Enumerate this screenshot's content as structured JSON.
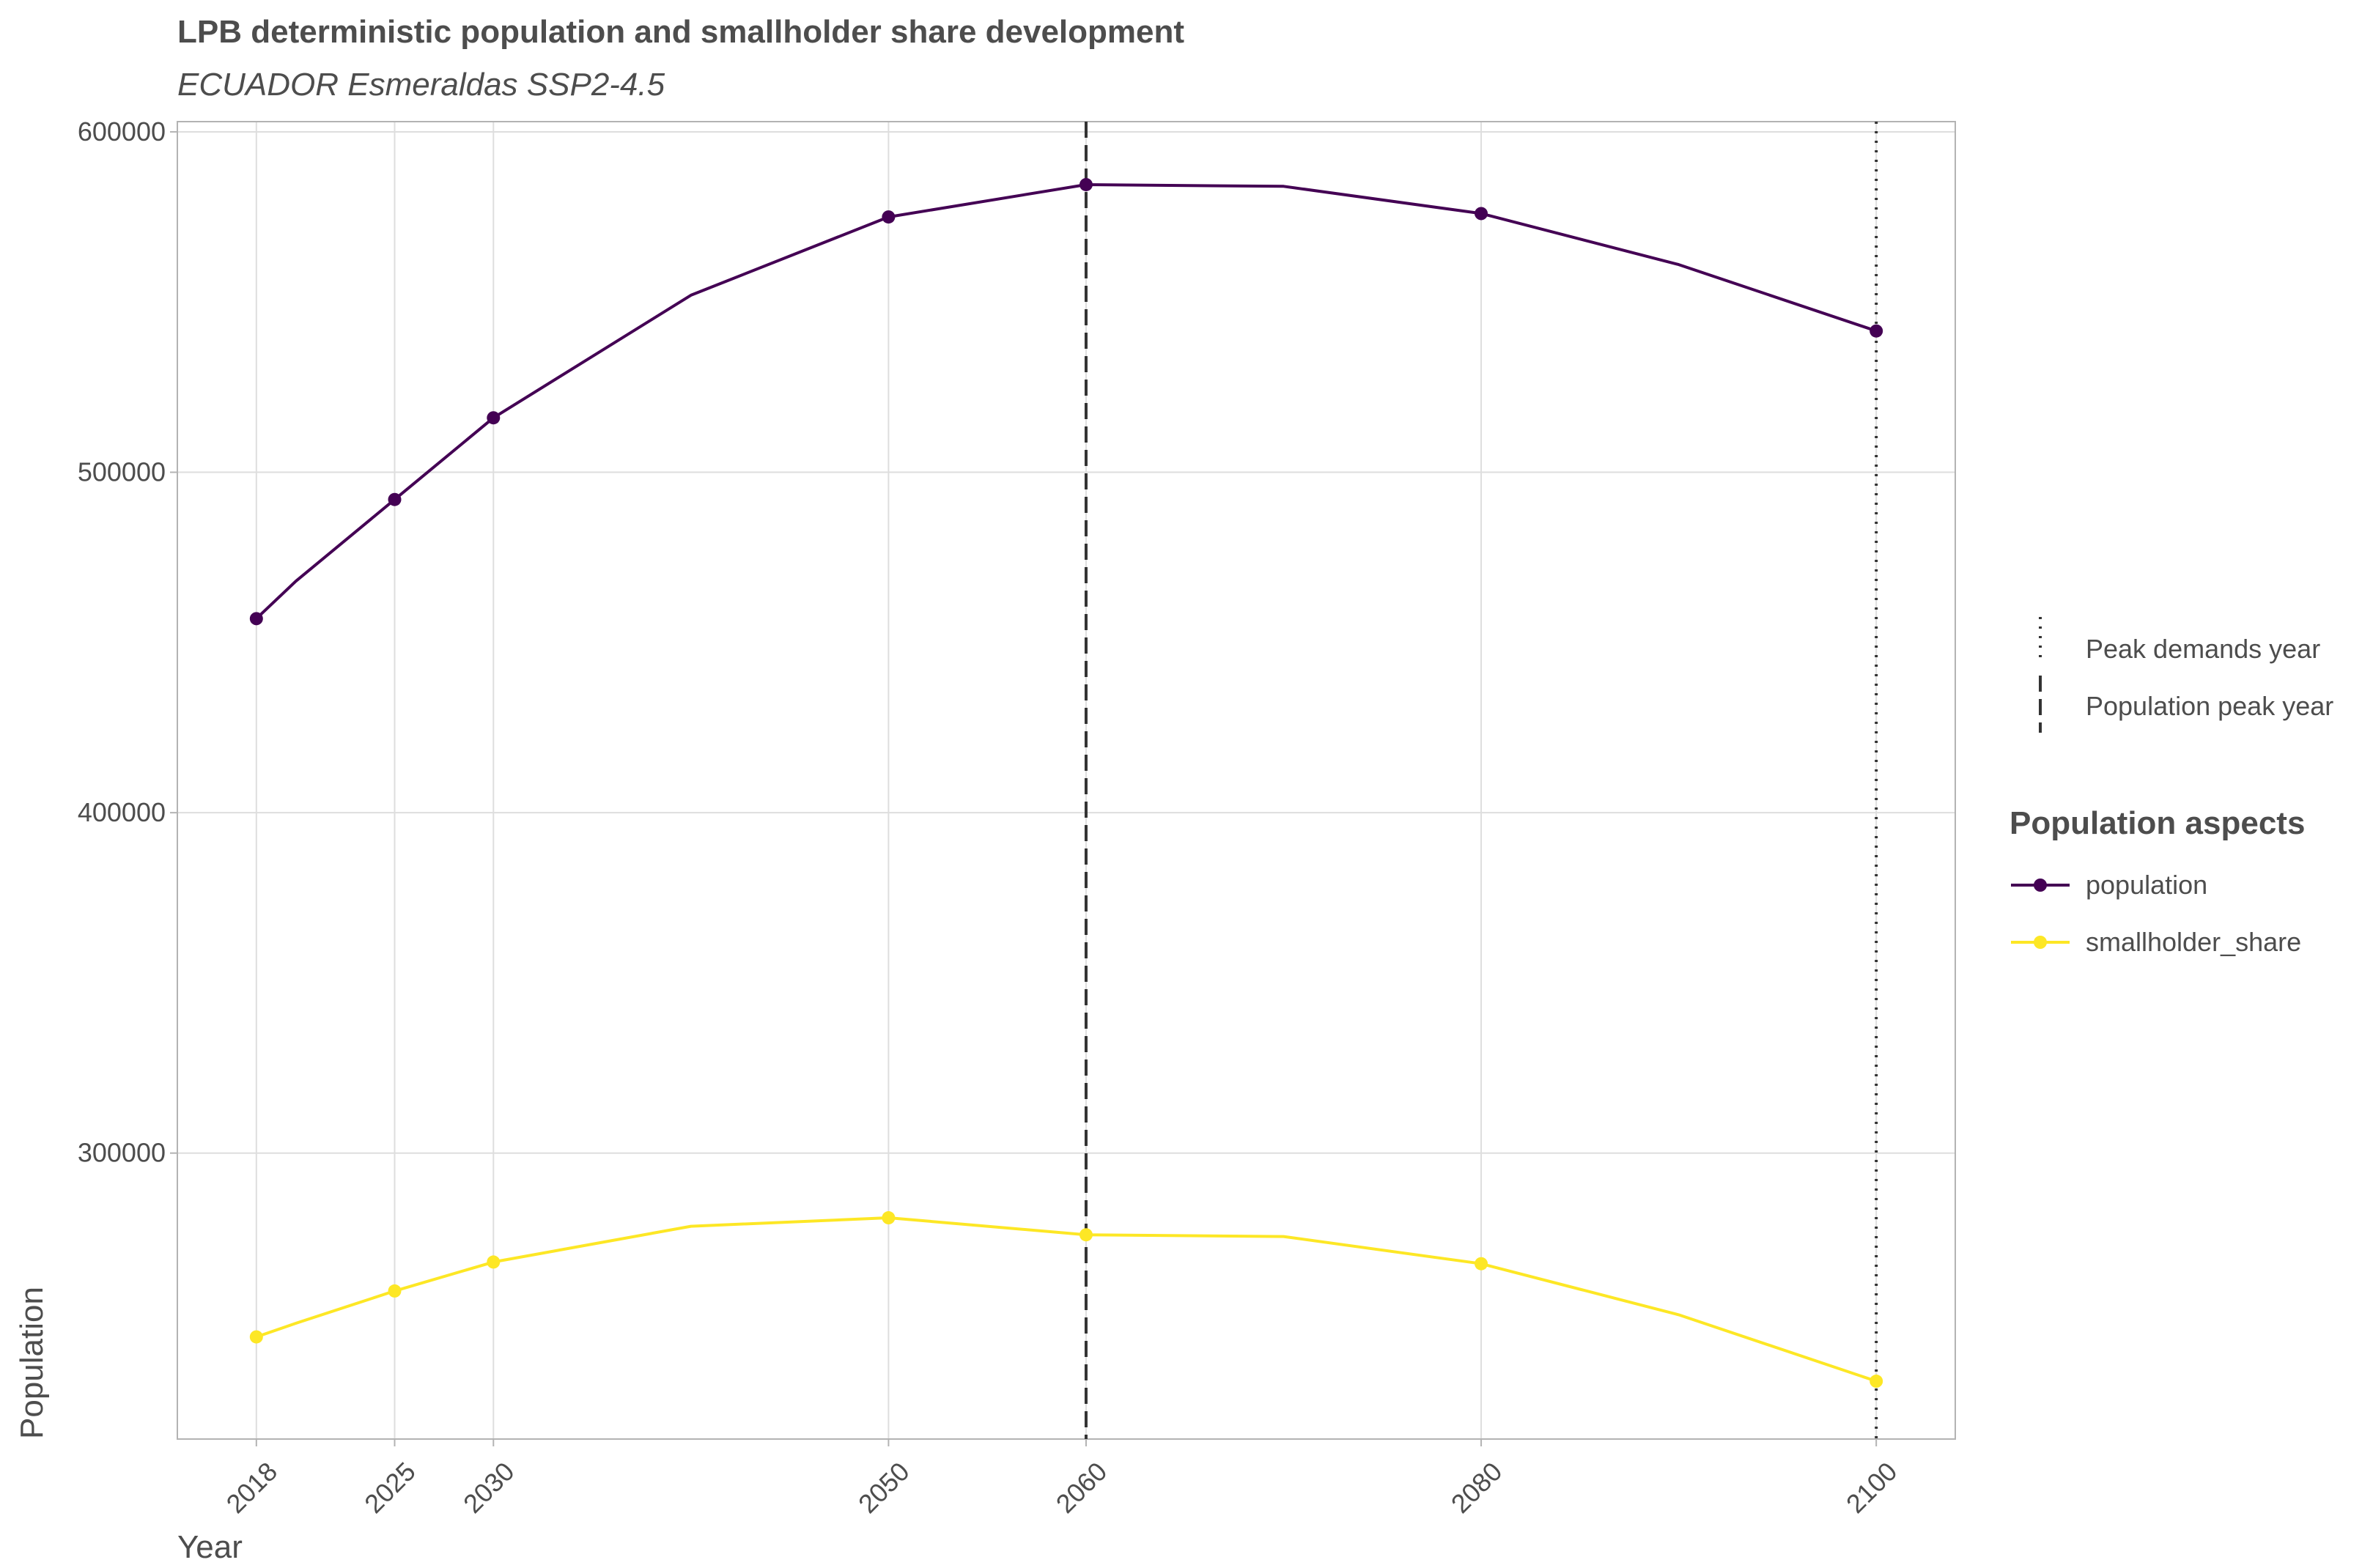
{
  "chart_data": {
    "type": "line",
    "title": "LPB deterministic population and smallholder share development",
    "subtitle": "ECUADOR Esmeraldas SSP2-4.5",
    "xlabel": "Year",
    "ylabel": "Population",
    "xlim": [
      2014,
      2104
    ],
    "ylim": [
      216000,
      603000
    ],
    "x_ticks": [
      2018,
      2025,
      2030,
      2050,
      2060,
      2080,
      2100
    ],
    "y_ticks": [
      300000,
      400000,
      500000,
      600000
    ],
    "grid": true,
    "legend_title": "Population aspects",
    "legend_position": "right",
    "series": [
      {
        "name": "population",
        "color": "#440154",
        "x": [
          2018,
          2020,
          2025,
          2030,
          2040,
          2050,
          2060,
          2070,
          2080,
          2090,
          2100
        ],
        "y": [
          457000,
          468000,
          492000,
          516000,
          552000,
          575000,
          584500,
          584000,
          576000,
          561000,
          541500
        ],
        "points": [
          2018,
          2025,
          2030,
          2050,
          2060,
          2080,
          2100
        ]
      },
      {
        "name": "smallholder_share",
        "color": "#fde725",
        "x": [
          2018,
          2020,
          2025,
          2030,
          2040,
          2050,
          2060,
          2070,
          2080,
          2090,
          2100
        ],
        "y": [
          246000,
          250000,
          259500,
          268000,
          278500,
          281000,
          276000,
          275500,
          267500,
          252500,
          233000
        ],
        "points": [
          2018,
          2025,
          2030,
          2050,
          2060,
          2080,
          2100
        ]
      }
    ],
    "reference_lines": [
      {
        "name": "Population peak year",
        "x": 2060,
        "style": "dashed",
        "color": "#333333"
      },
      {
        "name": "Peak demands year",
        "x": 2100,
        "style": "dotted",
        "color": "#333333"
      }
    ]
  }
}
